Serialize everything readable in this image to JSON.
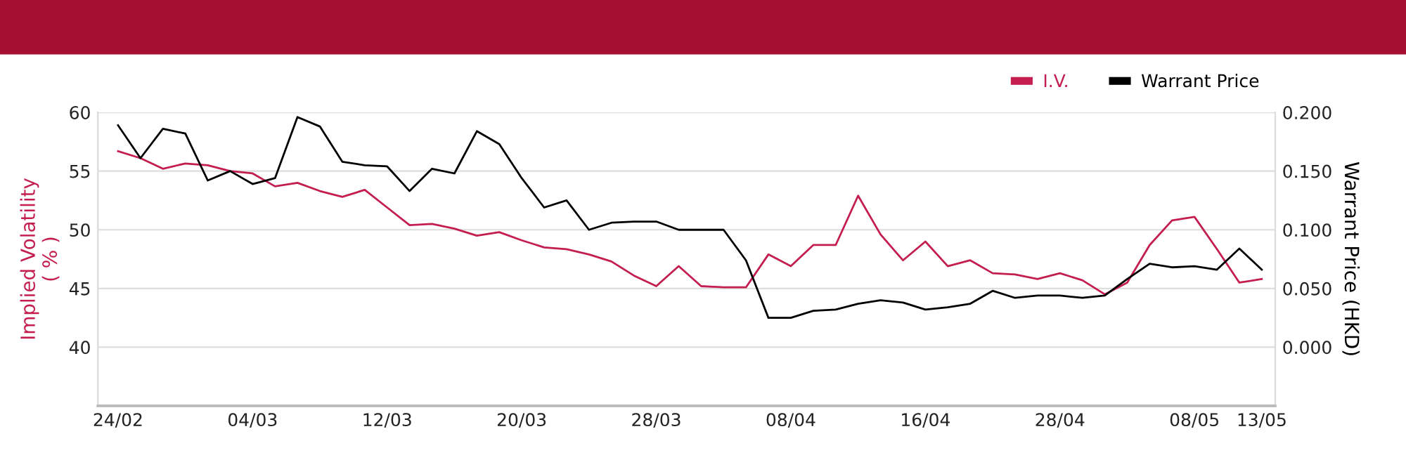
{
  "chart_data": {
    "type": "line",
    "categories": [
      "24/02",
      null,
      null,
      null,
      null,
      null,
      "04/03",
      null,
      null,
      null,
      null,
      null,
      "12/03",
      null,
      null,
      null,
      null,
      null,
      "20/03",
      null,
      null,
      null,
      null,
      null,
      "28/03",
      null,
      null,
      null,
      null,
      null,
      "08/04",
      null,
      null,
      null,
      null,
      null,
      "16/04",
      null,
      null,
      null,
      null,
      null,
      "28/04",
      null,
      null,
      null,
      null,
      null,
      "08/05",
      null,
      null,
      "13/05"
    ],
    "series": [
      {
        "name": "I.V.",
        "color": "#c41e50",
        "values": [
          56.7,
          56.1,
          55.2,
          55.65,
          55.5,
          55.0,
          54.8,
          53.7,
          54.0,
          53.3,
          52.8,
          53.4,
          51.9,
          50.4,
          50.5,
          50.1,
          49.5,
          49.8,
          49.1,
          48.5,
          48.35,
          47.9,
          47.3,
          46.1,
          45.2,
          46.9,
          45.2,
          45.1,
          45.1,
          47.9,
          46.9,
          48.7,
          48.7,
          52.9,
          49.6,
          47.4,
          49.0,
          46.9,
          47.4,
          46.3,
          46.2,
          45.8,
          46.3,
          45.7,
          44.5,
          45.5,
          48.7,
          50.8,
          51.1,
          48.35,
          45.5,
          45.8
        ]
      },
      {
        "name": "Warrant Price",
        "color": "#000000",
        "axis": "y2",
        "values": [
          0.189,
          0.161,
          0.186,
          0.182,
          0.142,
          0.15,
          0.139,
          0.144,
          0.196,
          0.188,
          0.158,
          0.155,
          0.154,
          0.133,
          0.152,
          0.148,
          0.184,
          0.173,
          0.144,
          0.119,
          0.125,
          0.1,
          0.106,
          0.107,
          0.107,
          0.1,
          0.1,
          0.1,
          0.074,
          0.025,
          0.025,
          0.031,
          0.032,
          0.037,
          0.04,
          0.038,
          0.032,
          0.034,
          0.037,
          0.048,
          0.042,
          0.044,
          0.044,
          0.042,
          0.044,
          0.058,
          0.071,
          0.068,
          0.069,
          0.066,
          0.084,
          0.066
        ]
      }
    ],
    "ylabel": "Implied Volatility\n( % )",
    "y2label": "Warrant Price (HKD)",
    "ylim": [
      35,
      60
    ],
    "yticks": [
      {
        "value": 35,
        "label": null
      },
      40,
      45,
      50,
      55,
      60
    ],
    "y2lim": [
      -0.05,
      0.2
    ],
    "y2ticks": [
      {
        "value": -0.05,
        "label": null
      },
      {
        "value": 0,
        "label": "0.000"
      },
      {
        "value": 0.05,
        "label": "0.050"
      },
      {
        "value": 0.1,
        "label": "0.100"
      },
      {
        "value": 0.15,
        "label": "0.150"
      },
      {
        "value": 0.2,
        "label": "0.200"
      }
    ],
    "grid": "y",
    "legend": "top right",
    "marker": "none",
    "line_style": "solid"
  }
}
